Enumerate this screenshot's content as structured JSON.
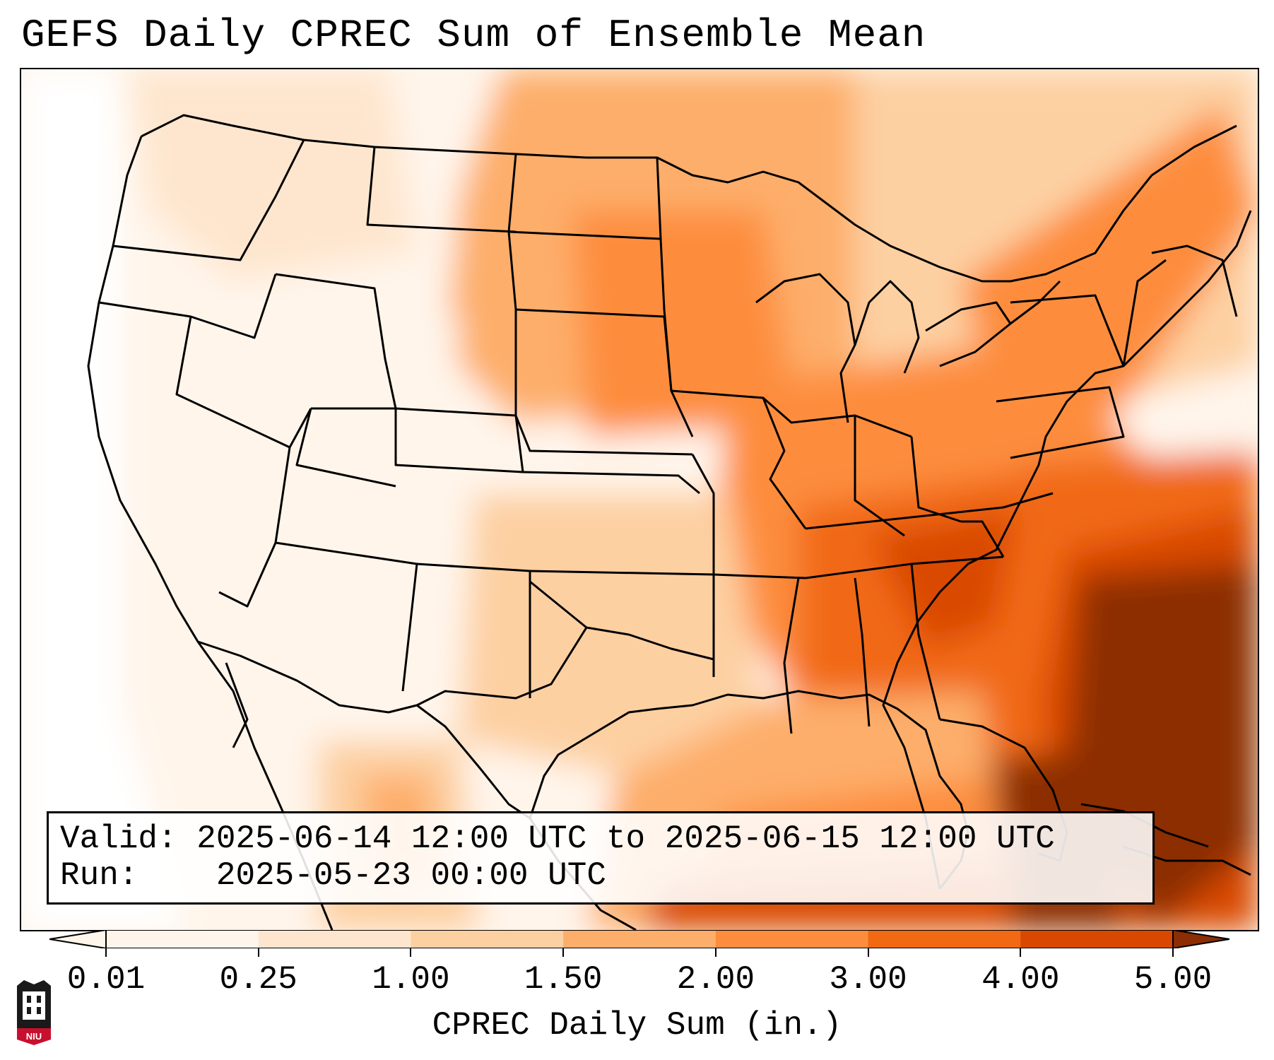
{
  "title": "GEFS Daily CPREC Sum of Ensemble Mean",
  "info": {
    "valid_label": "Valid:",
    "valid_value": "2025-06-14 12:00 UTC to 2025-06-15 12:00 UTC",
    "run_label": "Run:",
    "run_value": "2025-05-23 00:00 UTC"
  },
  "colorbar": {
    "label": "CPREC Daily Sum (in.)",
    "ticks": [
      "0.01",
      "0.25",
      "1.00",
      "1.50",
      "2.00",
      "3.00",
      "4.00",
      "5.00"
    ],
    "colors": [
      "#fff5eb",
      "#fee6ce",
      "#fdd0a2",
      "#fdae6b",
      "#fd8d3c",
      "#f16913",
      "#d94801",
      "#8c2d04"
    ],
    "extend": "both"
  },
  "logo": {
    "text": "NIU",
    "colors": {
      "primary": "#c8102e",
      "dark": "#000000"
    }
  },
  "map_colors": {
    "lightest": "#fff5eb",
    "light": "#fee6ce",
    "pale": "#fdd0a2",
    "mid": "#fdae6b",
    "orange": "#fd8d3c",
    "deep": "#f16913",
    "darker": "#d94801",
    "darkest": "#8c2d04"
  }
}
